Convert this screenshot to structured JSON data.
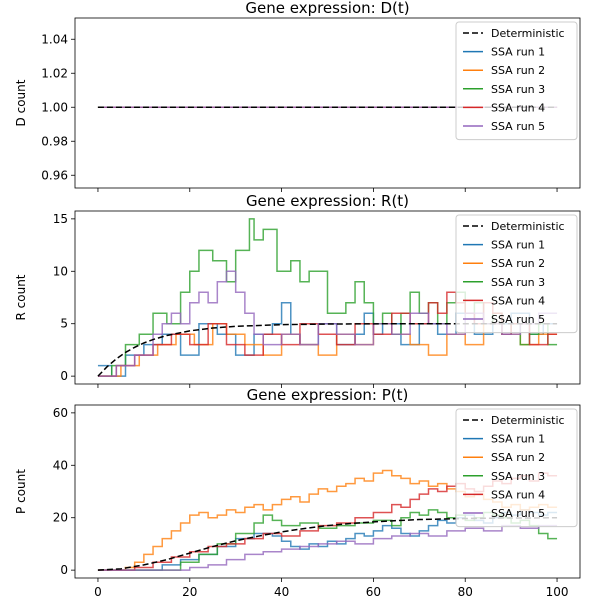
{
  "chart_data": [
    {
      "type": "line",
      "title": "Gene expression: D(t)",
      "xlabel": "",
      "ylabel": "D count",
      "xlim": [
        -5,
        105
      ],
      "ylim": [
        0.9525,
        1.0525
      ],
      "xticks": [
        0,
        20,
        40,
        60,
        80,
        100
      ],
      "show_xtick_labels": false,
      "yticks": [
        0.96,
        0.98,
        1.0,
        1.02,
        1.04
      ],
      "ytick_labels": [
        "0.96",
        "0.98",
        "1.00",
        "1.02",
        "1.04"
      ],
      "legend_position": "upper right",
      "series": [
        {
          "name": "Deterministic",
          "color": "#000000",
          "dashed": true,
          "step": false,
          "x": [
            0,
            100
          ],
          "y": [
            1,
            1
          ]
        },
        {
          "name": "SSA run 1",
          "color": "#1f77b4",
          "step": true,
          "x": [
            0,
            100
          ],
          "y": [
            1,
            1
          ]
        },
        {
          "name": "SSA run 2",
          "color": "#ff7f0e",
          "step": true,
          "x": [
            0,
            100
          ],
          "y": [
            1,
            1
          ]
        },
        {
          "name": "SSA run 3",
          "color": "#2ca02c",
          "step": true,
          "x": [
            0,
            100
          ],
          "y": [
            1,
            1
          ]
        },
        {
          "name": "SSA run 4",
          "color": "#d62728",
          "step": true,
          "x": [
            0,
            100
          ],
          "y": [
            1,
            1
          ]
        },
        {
          "name": "SSA run 5",
          "color": "#9467bd",
          "step": true,
          "x": [
            0,
            100
          ],
          "y": [
            1,
            1
          ]
        }
      ]
    },
    {
      "type": "line",
      "title": "Gene expression: R(t)",
      "xlabel": "",
      "ylabel": "R count",
      "xlim": [
        -5,
        105
      ],
      "ylim": [
        -0.75,
        15.75
      ],
      "xticks": [
        0,
        20,
        40,
        60,
        80,
        100
      ],
      "show_xtick_labels": false,
      "yticks": [
        0,
        5,
        10,
        15
      ],
      "ytick_labels": [
        "0",
        "5",
        "10",
        "15"
      ],
      "legend_position": "upper right",
      "series": [
        {
          "name": "Deterministic",
          "color": "#000000",
          "dashed": true,
          "step": false,
          "x": [
            0,
            2,
            4,
            6,
            8,
            10,
            12,
            15,
            20,
            25,
            30,
            40,
            50,
            60,
            80,
            100
          ],
          "y": [
            0,
            0.9,
            1.65,
            2.26,
            2.75,
            3.16,
            3.49,
            3.88,
            4.32,
            4.59,
            4.75,
            4.91,
            4.97,
            4.99,
            5.0,
            5.0
          ]
        },
        {
          "name": "SSA run 1",
          "color": "#1f77b4",
          "step": true,
          "x": [
            0,
            3,
            6,
            10,
            14,
            18,
            22,
            26,
            30,
            34,
            38,
            40,
            42,
            44,
            48,
            52,
            56,
            58,
            60,
            62,
            66,
            70,
            74,
            78,
            82,
            86,
            90,
            94,
            97,
            100
          ],
          "y": [
            1,
            0,
            2,
            3,
            4,
            2,
            5,
            4,
            2,
            4,
            5,
            7,
            4,
            3,
            5,
            3,
            4,
            6,
            4,
            5,
            3,
            5,
            4,
            6,
            4,
            5,
            6,
            4,
            5,
            5
          ]
        },
        {
          "name": "SSA run 2",
          "color": "#ff7f0e",
          "step": true,
          "x": [
            0,
            5,
            9,
            13,
            17,
            21,
            25,
            28,
            32,
            36,
            40,
            44,
            48,
            52,
            56,
            60,
            64,
            68,
            72,
            76,
            80,
            84,
            88,
            92,
            96,
            100
          ],
          "y": [
            0,
            1,
            2,
            3,
            4,
            3,
            5,
            4,
            3,
            2,
            4,
            3,
            2,
            4,
            3,
            5,
            4,
            3,
            2,
            4,
            3,
            5,
            4,
            3,
            4,
            4
          ]
        },
        {
          "name": "SSA run 3",
          "color": "#2ca02c",
          "step": true,
          "x": [
            0,
            3,
            6,
            9,
            12,
            15,
            18,
            20,
            22,
            25,
            28,
            30,
            33,
            34,
            36,
            39,
            42,
            44,
            46,
            50,
            54,
            56,
            58,
            60,
            62,
            64,
            66,
            68,
            70,
            72,
            74,
            76,
            78,
            80,
            82,
            84,
            86,
            88,
            90,
            92,
            94,
            96,
            98,
            100
          ],
          "y": [
            0,
            1,
            3,
            4,
            6,
            5,
            8,
            10,
            12,
            11,
            9,
            12,
            15,
            13,
            14,
            10,
            11,
            9,
            10,
            6,
            7,
            9,
            7,
            5,
            6,
            4,
            6,
            8,
            6,
            7,
            5,
            7,
            8,
            6,
            7,
            5,
            6,
            4,
            5,
            3,
            4,
            5,
            3,
            3
          ]
        },
        {
          "name": "SSA run 4",
          "color": "#d62728",
          "step": true,
          "x": [
            0,
            4,
            8,
            12,
            16,
            20,
            24,
            28,
            32,
            36,
            40,
            44,
            48,
            52,
            56,
            60,
            64,
            68,
            72,
            74,
            76,
            78,
            80,
            82,
            84,
            86,
            88,
            90,
            94,
            98,
            100
          ],
          "y": [
            0,
            1,
            2,
            3,
            4,
            3,
            5,
            3,
            2,
            4,
            3,
            5,
            4,
            3,
            5,
            4,
            6,
            5,
            7,
            6,
            8,
            7,
            6,
            5,
            7,
            6,
            4,
            5,
            3,
            4,
            4
          ]
        },
        {
          "name": "SSA run 5",
          "color": "#9467bd",
          "step": true,
          "x": [
            0,
            4,
            8,
            12,
            14,
            16,
            18,
            20,
            22,
            24,
            26,
            28,
            30,
            32,
            34,
            36,
            40,
            44,
            48,
            52,
            56,
            60,
            64,
            68,
            72,
            76,
            80,
            84,
            88,
            92,
            96,
            100
          ],
          "y": [
            0,
            1,
            2,
            4,
            5,
            6,
            5,
            7,
            8,
            7,
            9,
            10,
            8,
            6,
            4,
            3,
            4,
            3,
            5,
            4,
            3,
            5,
            4,
            6,
            5,
            4,
            6,
            5,
            4,
            5,
            6,
            6
          ]
        }
      ]
    },
    {
      "type": "line",
      "title": "Gene expression: P(t)",
      "xlabel": "",
      "ylabel": "P count",
      "xlim": [
        -5,
        105
      ],
      "ylim": [
        -3.0,
        63.0
      ],
      "xticks": [
        0,
        20,
        40,
        60,
        80,
        100
      ],
      "xtick_labels": [
        "0",
        "20",
        "40",
        "60",
        "80",
        "100"
      ],
      "show_xtick_labels": true,
      "yticks": [
        0,
        20,
        40,
        60
      ],
      "ytick_labels": [
        "0",
        "20",
        "40",
        "60"
      ],
      "legend_position": "upper right",
      "series": [
        {
          "name": "Deterministic",
          "color": "#000000",
          "dashed": true,
          "step": false,
          "x": [
            0,
            5,
            10,
            15,
            20,
            25,
            30,
            35,
            40,
            45,
            50,
            55,
            60,
            65,
            70,
            75,
            80,
            85,
            90,
            95,
            100
          ],
          "y": [
            0,
            0.5,
            2.0,
            4.0,
            6.5,
            9.0,
            11.2,
            13.0,
            14.6,
            15.9,
            17.0,
            17.8,
            18.4,
            18.9,
            19.3,
            19.5,
            19.7,
            19.8,
            19.9,
            19.9,
            20.0
          ]
        },
        {
          "name": "SSA run 1",
          "color": "#1f77b4",
          "step": true,
          "x": [
            0,
            10,
            14,
            18,
            22,
            26,
            30,
            34,
            38,
            40,
            42,
            44,
            46,
            48,
            50,
            52,
            54,
            56,
            58,
            60,
            62,
            64,
            66,
            68,
            70,
            72,
            74,
            76,
            78,
            80,
            82,
            84,
            86,
            88,
            90,
            92,
            94,
            96,
            98,
            100
          ],
          "y": [
            0,
            0,
            2,
            4,
            6,
            9,
            12,
            14,
            13,
            11,
            9,
            8,
            10,
            9,
            11,
            10,
            12,
            14,
            13,
            15,
            17,
            16,
            14,
            13,
            15,
            17,
            19,
            18,
            20,
            21,
            19,
            18,
            20,
            22,
            21,
            23,
            22,
            21,
            22,
            22
          ]
        },
        {
          "name": "SSA run 2",
          "color": "#ff7f0e",
          "step": true,
          "x": [
            0,
            6,
            8,
            10,
            12,
            14,
            16,
            18,
            20,
            22,
            24,
            26,
            28,
            30,
            32,
            34,
            36,
            38,
            40,
            42,
            44,
            46,
            48,
            50,
            52,
            54,
            56,
            58,
            60,
            62,
            64,
            66,
            68,
            70,
            72,
            74,
            76,
            78,
            80,
            82,
            84,
            86,
            88,
            90,
            92,
            94,
            96,
            98,
            100
          ],
          "y": [
            0,
            1,
            3,
            6,
            9,
            12,
            15,
            18,
            21,
            22,
            20,
            21,
            23,
            22,
            24,
            25,
            23,
            25,
            27,
            28,
            26,
            29,
            31,
            30,
            32,
            33,
            35,
            34,
            37,
            38,
            36,
            35,
            33,
            34,
            32,
            33,
            31,
            30,
            28,
            29,
            27,
            26,
            24,
            25,
            23,
            24,
            25,
            24,
            24
          ]
        },
        {
          "name": "SSA run 3",
          "color": "#2ca02c",
          "step": true,
          "x": [
            0,
            14,
            18,
            22,
            26,
            30,
            34,
            36,
            38,
            40,
            44,
            48,
            52,
            56,
            60,
            64,
            66,
            68,
            70,
            72,
            74,
            76,
            78,
            80,
            82,
            84,
            86,
            88,
            90,
            92,
            94,
            96,
            98,
            100
          ],
          "y": [
            0,
            0,
            3,
            6,
            10,
            14,
            18,
            21,
            19,
            17,
            18,
            16,
            17,
            18,
            19,
            17,
            20,
            22,
            21,
            23,
            22,
            20,
            21,
            19,
            20,
            22,
            21,
            20,
            18,
            19,
            17,
            14,
            12,
            12
          ]
        },
        {
          "name": "SSA run 4",
          "color": "#d62728",
          "step": true,
          "x": [
            0,
            8,
            12,
            16,
            20,
            24,
            28,
            32,
            36,
            40,
            44,
            48,
            52,
            56,
            60,
            64,
            66,
            68,
            70,
            72,
            74,
            76,
            78,
            80,
            82,
            84,
            86,
            88,
            90,
            92,
            94,
            96,
            98,
            100
          ],
          "y": [
            0,
            1,
            3,
            5,
            7,
            9,
            10,
            12,
            14,
            13,
            15,
            17,
            18,
            20,
            22,
            25,
            24,
            27,
            29,
            31,
            30,
            32,
            33,
            31,
            30,
            32,
            34,
            33,
            35,
            36,
            34,
            37,
            36,
            36
          ]
        },
        {
          "name": "SSA run 5",
          "color": "#9467bd",
          "step": true,
          "x": [
            0,
            16,
            20,
            24,
            28,
            32,
            36,
            40,
            44,
            48,
            52,
            56,
            60,
            64,
            68,
            72,
            76,
            80,
            84,
            88,
            92,
            96,
            100
          ],
          "y": [
            0,
            0,
            1,
            2,
            4,
            6,
            7,
            8,
            9,
            10,
            11,
            10,
            12,
            13,
            14,
            13,
            15,
            16,
            15,
            17,
            16,
            17,
            17
          ]
        }
      ]
    }
  ]
}
